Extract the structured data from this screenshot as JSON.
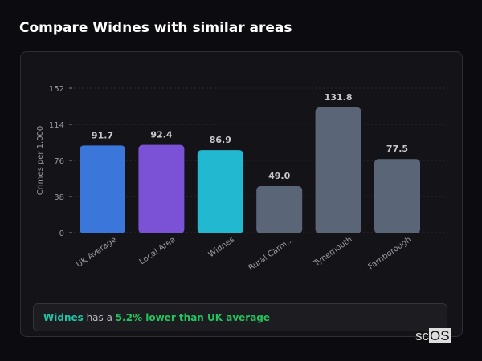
{
  "header": {
    "title": "Compare Widnes with similar areas"
  },
  "chart_data": {
    "type": "bar",
    "title": "",
    "xlabel": "",
    "ylabel": "Crimes per 1,000",
    "categories": [
      "UK Average",
      "Local Area",
      "Widnes",
      "Rural Carm...",
      "Tynemouth",
      "Farnborough"
    ],
    "values": [
      91.7,
      92.4,
      86.9,
      49.0,
      131.8,
      77.5
    ],
    "value_labels": [
      "91.7",
      "92.4",
      "86.9",
      "49.0",
      "131.8",
      "77.5"
    ],
    "colors": [
      "#3b76db",
      "#7b52d6",
      "#22b8d0",
      "#5a6678",
      "#5a6678",
      "#5a6678"
    ],
    "yticks": [
      0,
      38,
      76,
      114,
      152
    ],
    "ylim": [
      0,
      152
    ],
    "grid": true
  },
  "summary": {
    "area": "Widnes",
    "middle": " has a ",
    "comparison": "5.2% lower than UK average"
  },
  "watermark": {
    "a": "sc",
    "b": "OS"
  }
}
